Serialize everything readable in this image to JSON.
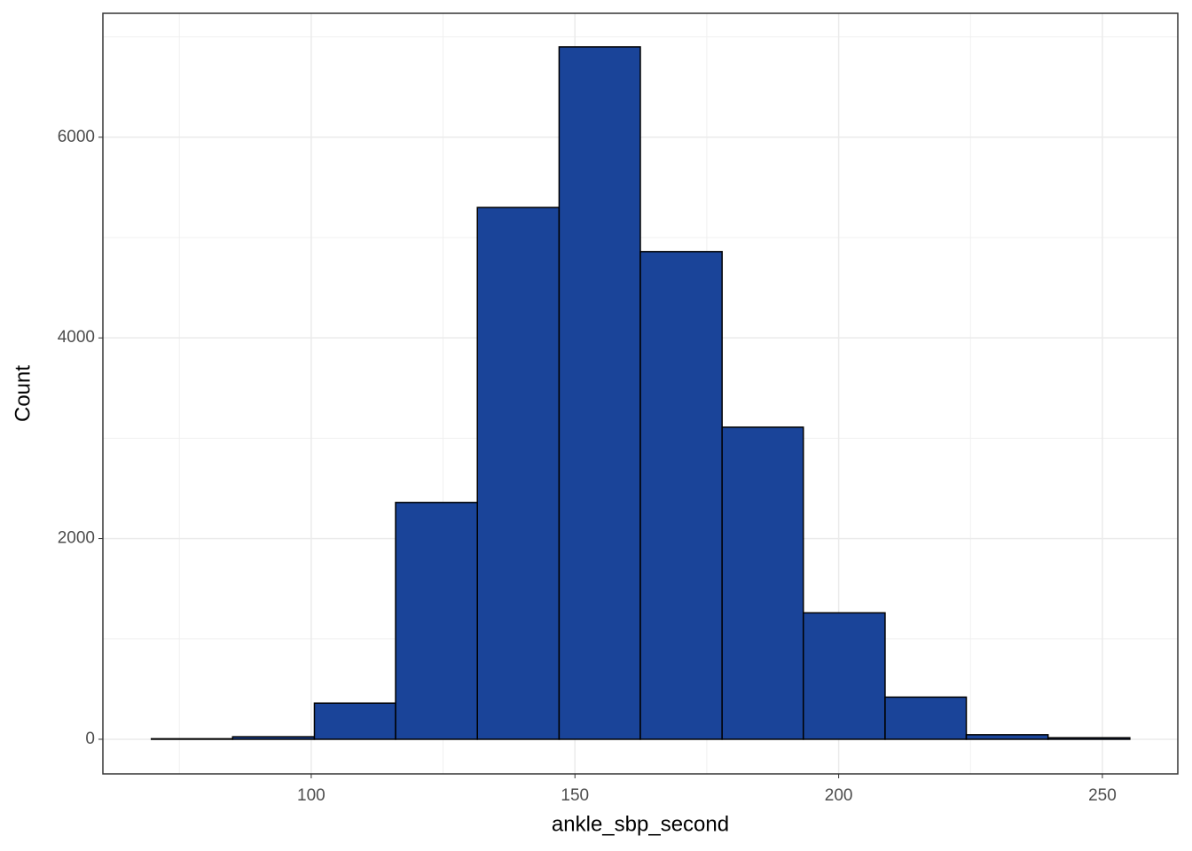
{
  "chart_data": {
    "type": "histogram",
    "x_label": "ankle_sbp_second",
    "y_label": "Count",
    "bins": [
      69.7,
      85.1,
      100.6,
      116.0,
      131.5,
      147.0,
      162.4,
      177.9,
      193.3,
      208.8,
      224.2,
      239.7,
      255.2
    ],
    "counts": [
      5,
      25,
      360,
      2360,
      5300,
      6900,
      4860,
      3110,
      1260,
      420,
      45,
      15
    ],
    "color": "#1a4499",
    "edgecolor": "#000000",
    "xlim": [
      60.5,
      264.3
    ],
    "ylim": [
      -345,
      7235
    ],
    "xticks": [
      100,
      150,
      200,
      250
    ],
    "yticks": [
      0,
      2000,
      4000,
      6000
    ],
    "minor_xticks": [
      75,
      125,
      175,
      225
    ],
    "minor_yticks": [
      1000,
      3000,
      5000,
      7000
    ],
    "grid": true
  }
}
